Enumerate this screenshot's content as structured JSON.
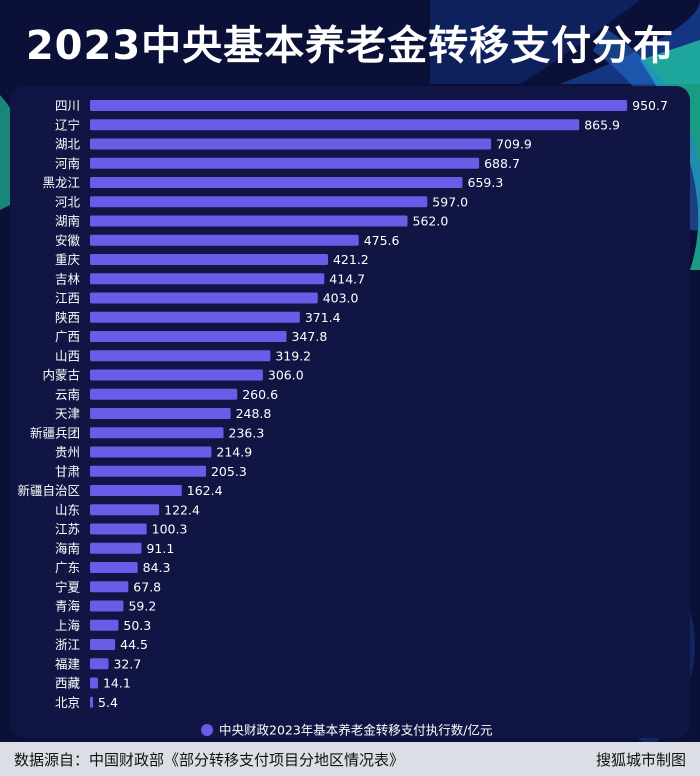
{
  "title": "2023中央基本养老金转移支付分布",
  "colors": {
    "background": "#0b1038",
    "panel": "#101544",
    "bar": "#6b5ce7",
    "text": "#ffffff",
    "accent_green": "#1fd7a8",
    "accent_blue": "#2a7de1"
  },
  "chart_data": {
    "type": "bar",
    "orientation": "horizontal",
    "categories": [
      "四川",
      "辽宁",
      "湖北",
      "河南",
      "黑龙江",
      "河北",
      "湖南",
      "安徽",
      "重庆",
      "吉林",
      "江西",
      "陕西",
      "广西",
      "山西",
      "内蒙古",
      "云南",
      "天津",
      "新疆兵团",
      "贵州",
      "甘肃",
      "新疆自治区",
      "山东",
      "江苏",
      "海南",
      "广东",
      "宁夏",
      "青海",
      "上海",
      "浙江",
      "福建",
      "西藏",
      "北京"
    ],
    "series": [
      {
        "name": "中央财政2023年基本养老金转移支付执行数/亿元",
        "values": [
          950.7,
          865.9,
          709.9,
          688.7,
          659.3,
          597.0,
          562.0,
          475.6,
          421.2,
          414.7,
          403.0,
          371.4,
          347.8,
          319.2,
          306.0,
          260.6,
          248.8,
          236.3,
          214.9,
          205.3,
          162.4,
          122.4,
          100.3,
          91.1,
          84.3,
          67.8,
          59.2,
          50.3,
          44.5,
          32.7,
          14.1,
          5.4
        ],
        "labels": [
          "950.7",
          "865.9",
          "709.9",
          "688.7",
          "659.3",
          "597.0",
          "562.0",
          "475.6",
          "421.2",
          "414.7",
          "403.0",
          "371.4",
          "347.8",
          "319.2",
          "306.0",
          "260.6",
          "248.8",
          "236.3",
          "214.9",
          "205.3",
          "162.4",
          "122.4",
          "100.3",
          "91.1",
          "84.3",
          "67.8",
          "59.2",
          "50.3",
          "44.5",
          "32.7",
          "14.1",
          "5.4"
        ]
      }
    ],
    "xlim": [
      0,
      1000
    ],
    "grid": false,
    "legend_position": "bottom"
  },
  "footer": {
    "source": "数据源自：中国财政部《部分转移支付项目分地区情况表》",
    "credit": "搜狐城市制图"
  }
}
